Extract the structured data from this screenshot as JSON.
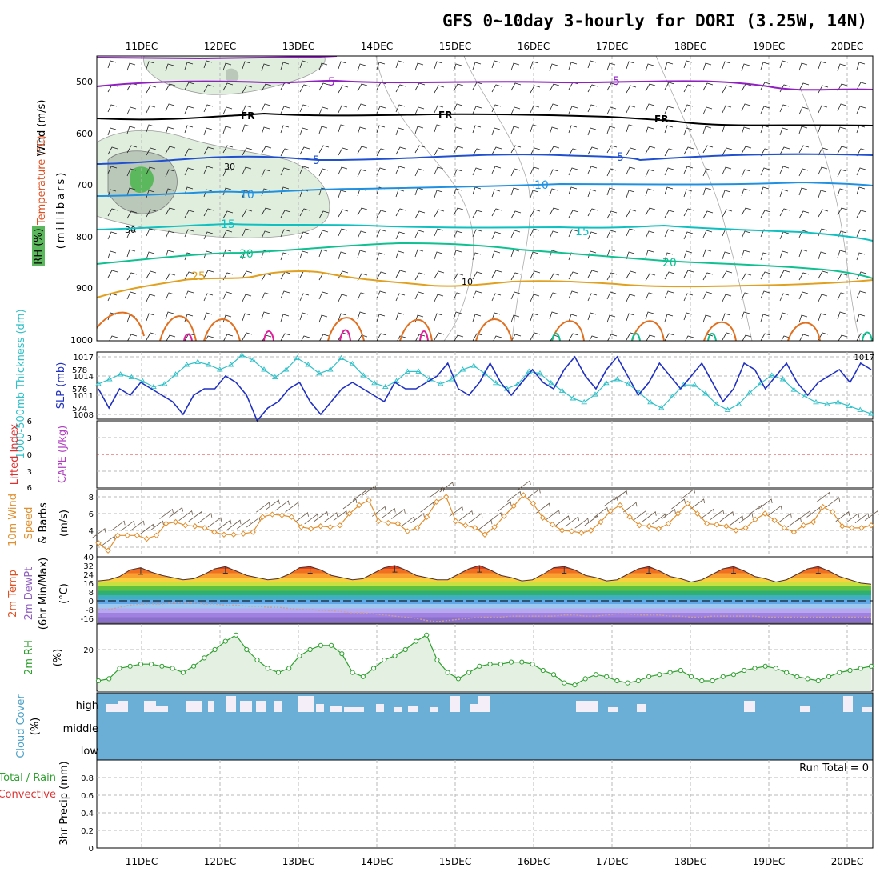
{
  "title": "GFS 0~10day 3-hourly for DORI (3.25W, 14N)",
  "dates": [
    "11DEC",
    "12DEC",
    "13DEC",
    "14DEC",
    "15DEC",
    "16DEC",
    "17DEC",
    "18DEC",
    "19DEC",
    "20DEC"
  ],
  "colors": {
    "isotherm_cool": "#9020c0",
    "isotherm_mid": "#2050d0",
    "isotherm_10": "#2090e0",
    "isotherm_15": "#10c0c0",
    "isotherm_20": "#10c090",
    "isotherm_25": "#e0a020",
    "isotherm_30": "#e07020",
    "slp": "#2030c0",
    "thickness": "#30c0c8",
    "wind10m": "#e09030",
    "temp": "#e05020",
    "dewpt": "#9060c0",
    "rh2m": "#30a030",
    "cloud": "#6baed6",
    "lifted": "#e03030"
  },
  "panels": {
    "upper": {
      "ylabel_wind": "Wind (m/s)",
      "ylabel_temp": "Temperature (°C)",
      "ylabel_rh": "RH (%)",
      "ylabel_press": "(millibars)",
      "pressure_ticks": [
        "500",
        "600",
        "700",
        "800",
        "900",
        "1000"
      ],
      "contour_labels": [
        "5",
        "5",
        "FR",
        "FR",
        "FR",
        "5",
        "5",
        "10",
        "10",
        "15",
        "15",
        "20",
        "20",
        "25",
        "30",
        "30",
        "10"
      ]
    },
    "slp": {
      "ylabel_thk": "1000-500mb Thickness (dm)",
      "ylabel_slp": "SLP (mb)",
      "thk_ticks": [
        "578",
        "576",
        "574"
      ],
      "slp_ticks": [
        "1017",
        "1014",
        "1011",
        "1008"
      ]
    },
    "cape": {
      "ylabel_li": "Lifted Index",
      "ylabel_cape": "CAPE (J/kg)",
      "ticks": [
        "6",
        "3",
        "0",
        "3",
        "6"
      ]
    },
    "wind10m": {
      "ylabel_a": "10m Wind",
      "ylabel_b": "Speed",
      "ylabel_c": "& Barbs",
      "unit": "(m/s)",
      "ticks": [
        "8",
        "6",
        "4",
        "2"
      ]
    },
    "temp": {
      "ylabel_a": "2m Temp",
      "ylabel_b": "2m DewPt",
      "ylabel_c": "(6hr Min/Max)",
      "unit": "(°C)",
      "ticks": [
        "40",
        "32",
        "24",
        "16",
        "8",
        "0",
        "-8",
        "-16"
      ]
    },
    "rh": {
      "ylabel": "2m RH",
      "unit": "(%)",
      "ticks": [
        "20"
      ]
    },
    "cloud": {
      "ylabel": "Cloud Cover",
      "unit": "(%)",
      "levels": [
        "high",
        "middle",
        "low"
      ]
    },
    "precip": {
      "ylabel_a": "Total / Rain",
      "ylabel_b": "Convective",
      "ylabel_c": "3hr Precip (mm)",
      "ticks": [
        "0.8",
        "0.6",
        "0.4",
        "0.2",
        "0"
      ],
      "run_total": "Run Total = 0"
    }
  },
  "chart_data": [
    {
      "type": "line",
      "title": "SLP (mb)",
      "unit": "mb",
      "series": [
        {
          "name": "SLP",
          "values": [
            1012,
            1009,
            1012,
            1011,
            1013,
            1012,
            1011,
            1010,
            1008,
            1011,
            1012,
            1012,
            1014,
            1013,
            1011,
            1007,
            1009,
            1010,
            1012,
            1013,
            1010,
            1008,
            1010,
            1012,
            1013,
            1012,
            1011,
            1010,
            1013,
            1012,
            1012,
            1013,
            1014,
            1016,
            1012,
            1011,
            1013,
            1016,
            1013,
            1011,
            1013,
            1015,
            1013,
            1012,
            1015,
            1017,
            1014,
            1012,
            1015,
            1017,
            1014,
            1011,
            1013,
            1016,
            1014,
            1012,
            1014,
            1016,
            1013,
            1010,
            1012,
            1016,
            1015,
            1012,
            1014,
            1016,
            1013,
            1011,
            1013,
            1014,
            1015,
            1013,
            1016,
            1015
          ]
        }
      ]
    },
    {
      "type": "line",
      "title": "1000-500mb Thickness (dm)",
      "unit": "dm",
      "series": [
        {
          "name": "Thickness",
          "values": [
            576.5,
            577,
            577.5,
            577.2,
            576.8,
            576.2,
            576.5,
            577.5,
            578.5,
            578.8,
            578.5,
            578,
            578.5,
            579.5,
            579,
            578,
            577.2,
            578,
            579.2,
            578.5,
            577.6,
            578,
            579.2,
            578.6,
            577.4,
            576.6,
            576.2,
            576.8,
            577.8,
            577.8,
            577,
            576.5,
            577,
            578,
            578.4,
            577.6,
            576.6,
            576,
            576.5,
            577.8,
            577.6,
            576.6,
            575.8,
            575,
            574.6,
            575.4,
            576.6,
            577,
            576.5,
            575.6,
            574.6,
            574,
            575.2,
            576.4,
            576.4,
            575.5,
            574.4,
            573.8,
            574.4,
            575.6,
            576.6,
            577.4,
            577,
            575.9,
            575.2,
            574.6,
            574.4,
            574.6,
            574.2,
            573.8,
            573.4
          ]
        }
      ]
    },
    {
      "type": "line",
      "title": "10m Wind Speed (m/s)",
      "unit": "m/s",
      "series": [
        {
          "name": "Wind speed",
          "values": [
            2.5,
            1.6,
            3.4,
            3.4,
            3.4,
            3.0,
            3.4,
            4.8,
            5.0,
            4.6,
            4.5,
            4.3,
            3.8,
            3.5,
            3.5,
            3.6,
            3.8,
            5.6,
            5.9,
            5.8,
            5.6,
            4.4,
            4.2,
            4.5,
            4.4,
            4.6,
            6.0,
            7.0,
            7.6,
            5.1,
            4.9,
            4.8,
            3.9,
            4.3,
            5.6,
            7.4,
            8.0,
            5.1,
            4.6,
            4.3,
            3.5,
            4.4,
            5.7,
            6.9,
            8.2,
            7.2,
            5.5,
            4.7,
            4.0,
            3.9,
            3.7,
            4.0,
            5.0,
            6.3,
            7.0,
            5.6,
            4.6,
            4.5,
            4.2,
            4.8,
            6.0,
            7.2,
            6.0,
            4.8,
            4.7,
            4.5,
            4.0,
            4.3,
            5.3,
            6.0,
            5.2,
            4.3,
            3.8,
            4.6,
            5.0,
            6.8,
            6.2,
            4.5,
            4.3,
            4.3,
            4.6
          ]
        }
      ]
    },
    {
      "type": "area",
      "title": "2m Temp (°C)",
      "unit": "°C",
      "series": [
        {
          "name": "2m Temp",
          "values": [
            21,
            22,
            25,
            31,
            33,
            29,
            26,
            24,
            22,
            23,
            27,
            32,
            34,
            30,
            26,
            24,
            22,
            23,
            27,
            33,
            34,
            31,
            26,
            24,
            22,
            23,
            28,
            33,
            35,
            31,
            26,
            24,
            22,
            22,
            27,
            32,
            35,
            31,
            26,
            24,
            21,
            22,
            27,
            33,
            34,
            31,
            26,
            24,
            21,
            22,
            27,
            32,
            34,
            30,
            25,
            23,
            20,
            22,
            27,
            32,
            34,
            30,
            25,
            23,
            20,
            22,
            27,
            32,
            34,
            30,
            25,
            22,
            19,
            18
          ]
        },
        {
          "name": "2m DewPt",
          "values": [
            -5,
            -5,
            -3,
            -1,
            0,
            0,
            0,
            1,
            1,
            1,
            0,
            0,
            -1,
            -1,
            -2,
            -2,
            -3,
            -3,
            -4,
            -5,
            -5,
            -6,
            -6,
            -7,
            -8,
            -8,
            -9,
            -10,
            -11,
            -12,
            -13,
            -15,
            -16,
            -15,
            -14,
            -13,
            -12,
            -12,
            -12,
            -11,
            -11,
            -11,
            -11,
            -11,
            -10,
            -10,
            -11,
            -11,
            -10,
            -9,
            -9,
            -10,
            -10,
            -10,
            -11,
            -11,
            -12,
            -12,
            -11,
            -11,
            -11,
            -11,
            -11,
            -12,
            -12,
            -12,
            -12,
            -12,
            -12,
            -12,
            -12,
            -12,
            -12,
            -12
          ]
        }
      ]
    },
    {
      "type": "area",
      "title": "2m RH (%)",
      "unit": "%",
      "series": [
        {
          "name": "2m RH",
          "values": [
            5,
            6,
            11,
            12,
            13,
            13,
            12,
            11,
            9,
            12,
            16,
            20,
            24,
            27,
            20,
            15,
            11,
            9,
            11,
            17,
            20,
            22,
            22,
            18,
            9,
            7,
            11,
            15,
            17,
            20,
            24,
            27,
            15,
            9,
            6,
            9,
            12,
            13,
            13,
            14,
            14,
            13,
            10,
            8,
            4,
            3,
            6,
            8,
            7,
            5,
            4,
            5,
            7,
            8,
            9,
            10,
            7,
            5,
            5,
            7,
            8,
            10,
            11,
            12,
            11,
            9,
            7,
            6,
            5,
            7,
            9,
            10,
            11,
            12
          ]
        }
      ]
    },
    {
      "type": "bar",
      "title": "3hr Precip (mm)",
      "unit": "mm",
      "ylim": [
        0,
        0.9
      ],
      "values": [
        0
      ]
    }
  ]
}
